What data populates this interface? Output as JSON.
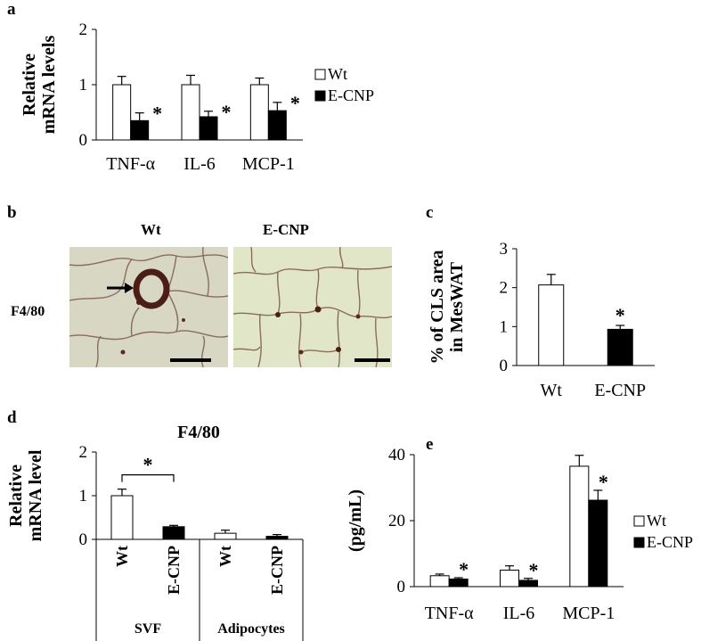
{
  "panels": {
    "a": "a",
    "b": "b",
    "c": "c",
    "d": "d",
    "e": "e"
  },
  "colors": {
    "wt": "#ffffff",
    "ecnp": "#000000",
    "stroke": "#000000",
    "tissue_bg": "#d8d8c4",
    "tissue_bg2": "#e3e7c9",
    "membrane": "#8a6b60",
    "stain": "#4a1e14"
  },
  "micrographs": {
    "wt_title": "Wt",
    "ecnp_title": "E-CNP",
    "row_label": "F4/80",
    "wt_icon": "arrow-icon"
  },
  "chart_data": [
    {
      "id": "a",
      "type": "bar",
      "categories": [
        "TNF-α",
        "IL-6",
        "MCP-1"
      ],
      "series": [
        {
          "name": "Wt",
          "values": [
            1.0,
            1.0,
            1.0
          ],
          "errors": [
            0.15,
            0.17,
            0.12
          ]
        },
        {
          "name": "E-CNP",
          "values": [
            0.35,
            0.42,
            0.53
          ],
          "errors": [
            0.14,
            0.1,
            0.15
          ]
        }
      ],
      "significance": [
        "*",
        "*",
        "*"
      ],
      "ylabel": [
        "Relative",
        "mRNA levels"
      ],
      "ylim": [
        0,
        2
      ],
      "yticks": [
        0,
        1,
        2
      ],
      "legend": "right",
      "grid": false
    },
    {
      "id": "c",
      "type": "bar",
      "categories": [
        "Wt",
        "E-CNP"
      ],
      "series": [
        {
          "name": "",
          "values": [
            2.07,
            0.93
          ],
          "errors": [
            0.27,
            0.1
          ]
        }
      ],
      "significance": [
        "",
        "*"
      ],
      "ylabel": [
        "% of CLS area",
        "in MesWAT"
      ],
      "ylim": [
        0,
        3
      ],
      "yticks": [
        0,
        1,
        2,
        3
      ],
      "grid": false
    },
    {
      "id": "d",
      "type": "bar",
      "title": "F4/80",
      "categories": [
        "Wt",
        "E-CNP",
        "Wt",
        "E-CNP"
      ],
      "groups": [
        "SVF",
        "Adipocytes"
      ],
      "series": [
        {
          "name": "",
          "values": [
            1.0,
            0.29,
            0.14,
            0.07
          ],
          "errors": [
            0.15,
            0.03,
            0.07,
            0.04
          ]
        }
      ],
      "significance_bracket": "*",
      "ylabel": [
        "Relative",
        "mRNA level"
      ],
      "ylim": [
        0,
        2
      ],
      "yticks": [
        0,
        1,
        2
      ],
      "grid": false
    },
    {
      "id": "e",
      "type": "bar",
      "categories": [
        "TNF-α",
        "IL-6",
        "MCP-1"
      ],
      "series": [
        {
          "name": "Wt",
          "values": [
            3.3,
            5.0,
            36.5
          ],
          "errors": [
            0.5,
            1.3,
            3.3
          ]
        },
        {
          "name": "E-CNP",
          "values": [
            2.3,
            1.9,
            26.2
          ],
          "errors": [
            0.4,
            0.6,
            3.0
          ]
        }
      ],
      "significance": [
        "*",
        "*",
        "*"
      ],
      "ylabel": [
        "(pg/mL)"
      ],
      "ylim": [
        0,
        40
      ],
      "yticks": [
        0,
        20,
        40
      ],
      "legend": "right",
      "grid": false
    }
  ]
}
